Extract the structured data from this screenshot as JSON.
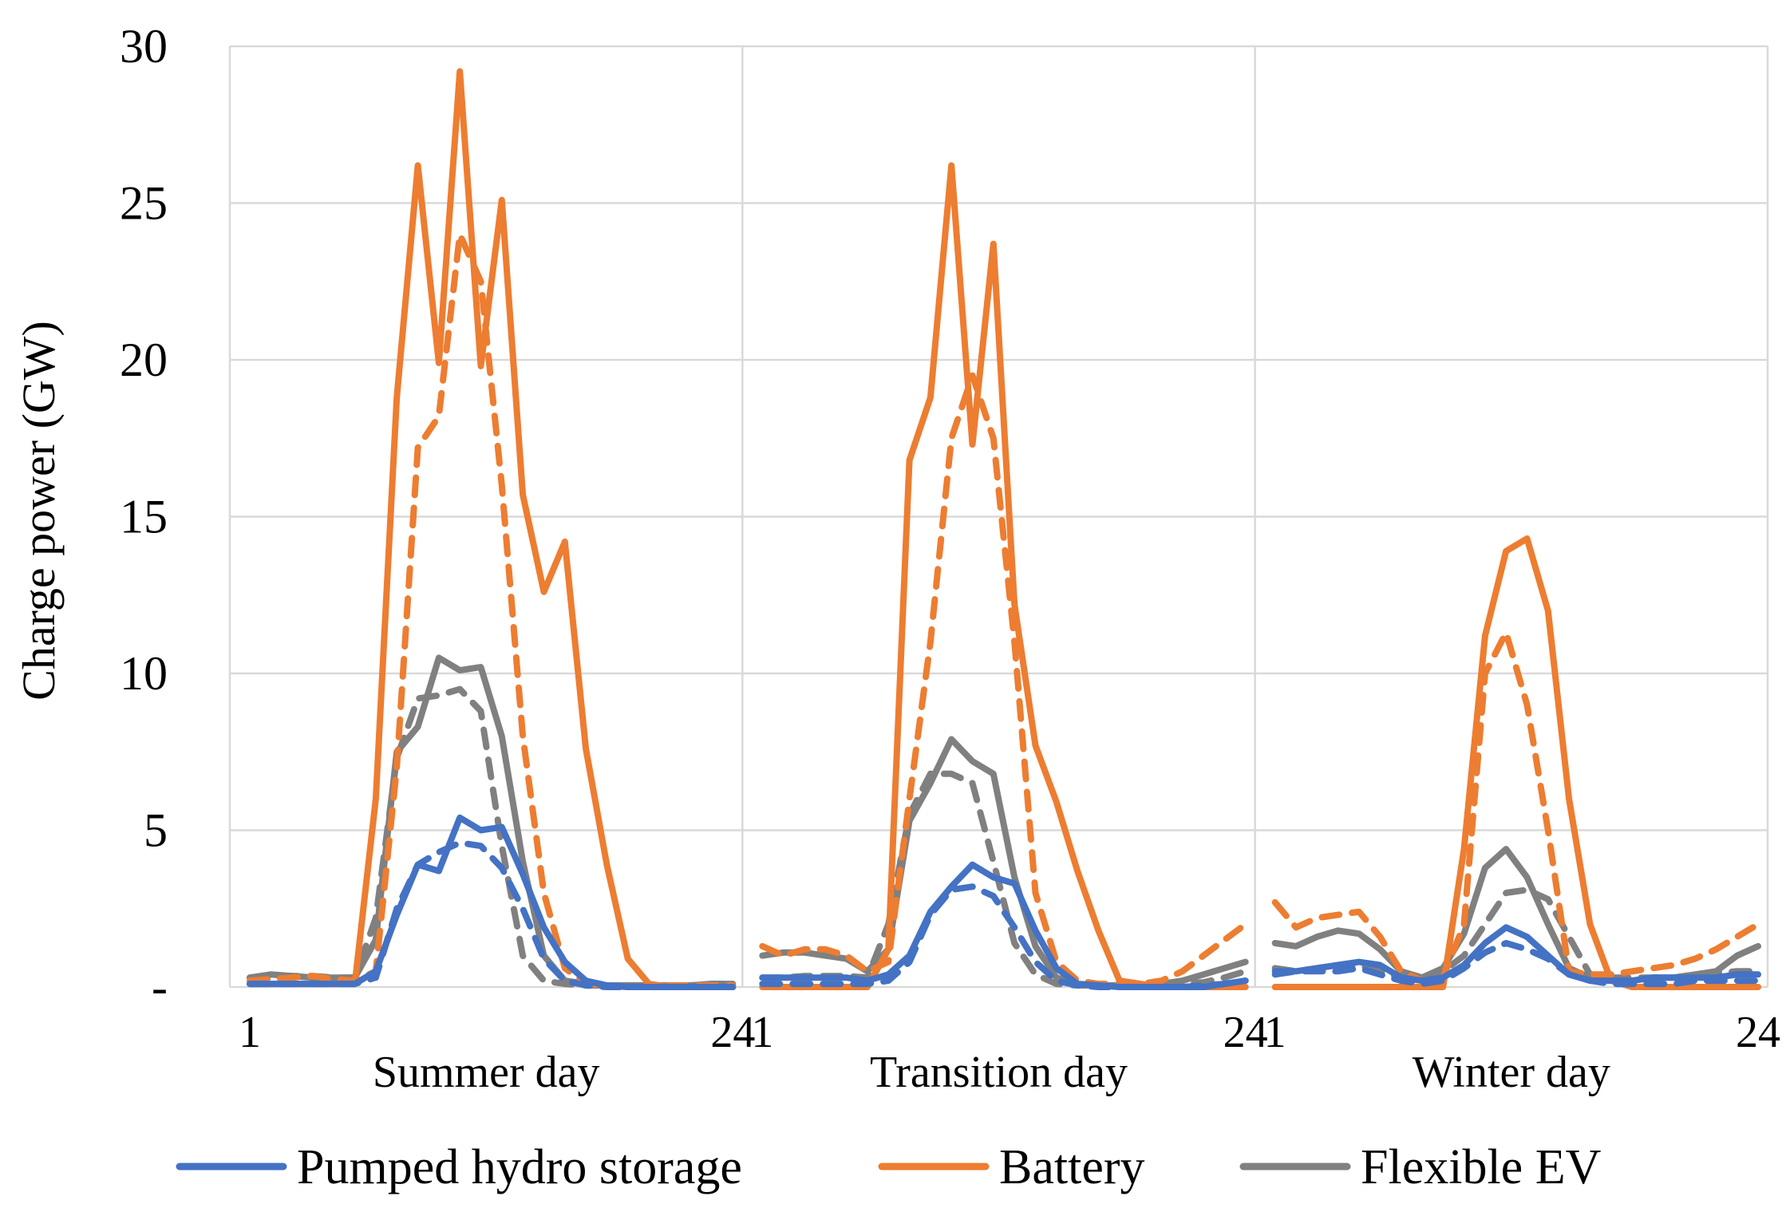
{
  "chart_data": {
    "type": "line",
    "title": "",
    "xlabel": "",
    "ylabel": "Charge power (GW)",
    "ylim": [
      0,
      30
    ],
    "y_ticks": [
      {
        "value": 0,
        "label": "-"
      },
      {
        "value": 5,
        "label": "5"
      },
      {
        "value": 10,
        "label": "10"
      },
      {
        "value": 15,
        "label": "15"
      },
      {
        "value": 20,
        "label": "20"
      },
      {
        "value": 25,
        "label": "25"
      },
      {
        "value": 30,
        "label": "30"
      }
    ],
    "x_hour_ticks": [
      {
        "panel": 0,
        "hour": 1,
        "label": "1"
      },
      {
        "panel": 0,
        "hour": 24,
        "label": "24"
      },
      {
        "panel": 1,
        "hour": 1,
        "label": "1"
      },
      {
        "panel": 1,
        "hour": 24,
        "label": "24"
      },
      {
        "panel": 2,
        "hour": 1,
        "label": "1"
      },
      {
        "panel": 2,
        "hour": 24,
        "label": "24"
      }
    ],
    "panels": [
      "Summer day",
      "Transition day",
      "Winter day"
    ],
    "hours_per_panel": 24,
    "grid": true,
    "legend_position": "bottom",
    "legend": [
      {
        "name": "Pumped hydro storage",
        "color": "#4472C4"
      },
      {
        "name": "Battery",
        "color": "#ED7D31"
      },
      {
        "name": "Flexible EV",
        "color": "#808080"
      }
    ],
    "series": [
      {
        "name": "Flexible EV",
        "style": "dashed",
        "color": "#808080",
        "values": [
          0.3,
          0.3,
          0.35,
          0.35,
          0.3,
          0.3,
          2.2,
          7.3,
          9.2,
          9.3,
          9.5,
          8.8,
          4.5,
          1.0,
          0.2,
          0.1,
          0.05,
          0.05,
          0.05,
          0.05,
          0.05,
          0.05,
          0.1,
          0.1,
          0.3,
          0.3,
          0.35,
          0.35,
          0.35,
          0.3,
          2.0,
          5.5,
          6.8,
          6.8,
          6.5,
          4.0,
          1.4,
          0.4,
          0.1,
          0.05,
          0.05,
          0.05,
          0.05,
          0.05,
          0.1,
          0.15,
          0.3,
          0.5,
          0.6,
          0.5,
          0.6,
          0.7,
          0.7,
          0.5,
          0.3,
          0.3,
          0.5,
          1.0,
          2.0,
          3.0,
          3.1,
          2.8,
          1.6,
          0.4,
          0.3,
          0.3,
          0.3,
          0.3,
          0.4,
          0.45,
          0.5,
          0.5
        ]
      },
      {
        "name": "Flexible EV",
        "style": "solid",
        "color": "#808080",
        "values": [
          0.3,
          0.4,
          0.35,
          0.3,
          0.3,
          0.3,
          1.5,
          7.5,
          8.3,
          10.5,
          10.1,
          10.2,
          8.0,
          4.0,
          1.0,
          0.2,
          0.1,
          0.05,
          0.05,
          0.05,
          0.05,
          0.05,
          0.1,
          0.1,
          1.0,
          1.1,
          1.1,
          1.0,
          0.9,
          0.5,
          1.2,
          5.3,
          6.5,
          7.9,
          7.2,
          6.8,
          3.5,
          1.3,
          0.3,
          0.1,
          0.05,
          0.05,
          0.05,
          0.1,
          0.2,
          0.4,
          0.6,
          0.8,
          1.4,
          1.3,
          1.6,
          1.8,
          1.7,
          1.2,
          0.5,
          0.3,
          0.6,
          1.7,
          3.8,
          4.4,
          3.5,
          2.0,
          0.6,
          0.3,
          0.2,
          0.2,
          0.3,
          0.3,
          0.4,
          0.5,
          1.0,
          1.3
        ]
      },
      {
        "name": "Battery",
        "style": "dashed",
        "color": "#ED7D31",
        "values": [
          0.2,
          0.25,
          0.3,
          0.35,
          0.25,
          0.2,
          0.5,
          7.0,
          17.2,
          18.2,
          24.0,
          22.5,
          16.0,
          8.0,
          3.0,
          0.6,
          0.1,
          0.05,
          0.0,
          0.0,
          0.05,
          0.05,
          0.05,
          0.05,
          1.3,
          1.0,
          1.2,
          1.2,
          1.0,
          0.5,
          0.8,
          6.0,
          11.0,
          17.5,
          19.5,
          17.5,
          11.0,
          3.0,
          0.8,
          0.2,
          0.1,
          0.1,
          0.1,
          0.2,
          0.5,
          1.0,
          1.5,
          2.0,
          2.7,
          1.9,
          2.2,
          2.3,
          2.4,
          1.6,
          0.5,
          0.2,
          0.3,
          2.0,
          10.0,
          11.3,
          9.0,
          5.0,
          0.5,
          0.4,
          0.4,
          0.5,
          0.6,
          0.7,
          0.9,
          1.2,
          1.6,
          2.0
        ]
      },
      {
        "name": "Battery",
        "style": "solid",
        "color": "#ED7D31",
        "values": [
          0.1,
          0.1,
          0.1,
          0.1,
          0.1,
          0.1,
          6.0,
          18.8,
          26.2,
          19.9,
          29.2,
          19.8,
          25.1,
          15.7,
          12.6,
          14.2,
          7.6,
          3.9,
          0.9,
          0.1,
          0.0,
          0.0,
          0.0,
          0.0,
          0.0,
          0.0,
          0.0,
          0.0,
          0.0,
          0.0,
          1.2,
          16.8,
          18.8,
          26.2,
          17.3,
          23.7,
          12.2,
          7.7,
          5.9,
          3.7,
          1.8,
          0.2,
          0.1,
          0.0,
          0.0,
          0.0,
          0.0,
          0.0,
          0.0,
          0.0,
          0.0,
          0.0,
          0.0,
          0.0,
          0.0,
          0.0,
          0.0,
          4.4,
          11.2,
          13.9,
          14.3,
          12.0,
          6.0,
          2.0,
          0.2,
          0.0,
          0.0,
          0.0,
          0.0,
          0.0,
          0.0,
          0.0
        ]
      },
      {
        "name": "Pumped hydro storage",
        "style": "dashed",
        "color": "#4472C4",
        "values": [
          0.1,
          0.1,
          0.1,
          0.1,
          0.1,
          0.1,
          0.3,
          2.5,
          3.9,
          4.3,
          4.6,
          4.5,
          3.8,
          2.5,
          0.9,
          0.2,
          0.05,
          0.0,
          0.0,
          0.0,
          0.0,
          0.0,
          0.0,
          0.0,
          0.1,
          0.1,
          0.1,
          0.1,
          0.1,
          0.1,
          0.2,
          0.8,
          2.3,
          3.1,
          3.2,
          2.9,
          1.9,
          0.8,
          0.2,
          0.05,
          0.0,
          0.0,
          0.0,
          0.0,
          0.0,
          0.05,
          0.1,
          0.2,
          0.4,
          0.5,
          0.5,
          0.5,
          0.6,
          0.4,
          0.2,
          0.1,
          0.2,
          0.6,
          1.1,
          1.4,
          1.2,
          0.9,
          0.4,
          0.2,
          0.1,
          0.1,
          0.1,
          0.1,
          0.2,
          0.2,
          0.2,
          0.2
        ]
      },
      {
        "name": "Pumped hydro storage",
        "style": "solid",
        "color": "#4472C4",
        "values": [
          0.1,
          0.1,
          0.1,
          0.1,
          0.1,
          0.1,
          0.5,
          2.3,
          3.9,
          3.7,
          5.4,
          5.0,
          5.1,
          3.6,
          1.9,
          0.8,
          0.2,
          0.05,
          0.0,
          0.0,
          0.0,
          0.0,
          0.0,
          0.0,
          0.3,
          0.3,
          0.3,
          0.3,
          0.3,
          0.2,
          0.4,
          1.0,
          2.4,
          3.2,
          3.9,
          3.5,
          3.3,
          1.8,
          0.6,
          0.1,
          0.05,
          0.0,
          0.0,
          0.0,
          0.0,
          0.0,
          0.1,
          0.2,
          0.5,
          0.5,
          0.6,
          0.7,
          0.8,
          0.7,
          0.3,
          0.2,
          0.3,
          0.7,
          1.4,
          1.9,
          1.6,
          1.0,
          0.4,
          0.2,
          0.2,
          0.2,
          0.3,
          0.3,
          0.3,
          0.3,
          0.4,
          0.4
        ]
      }
    ]
  }
}
